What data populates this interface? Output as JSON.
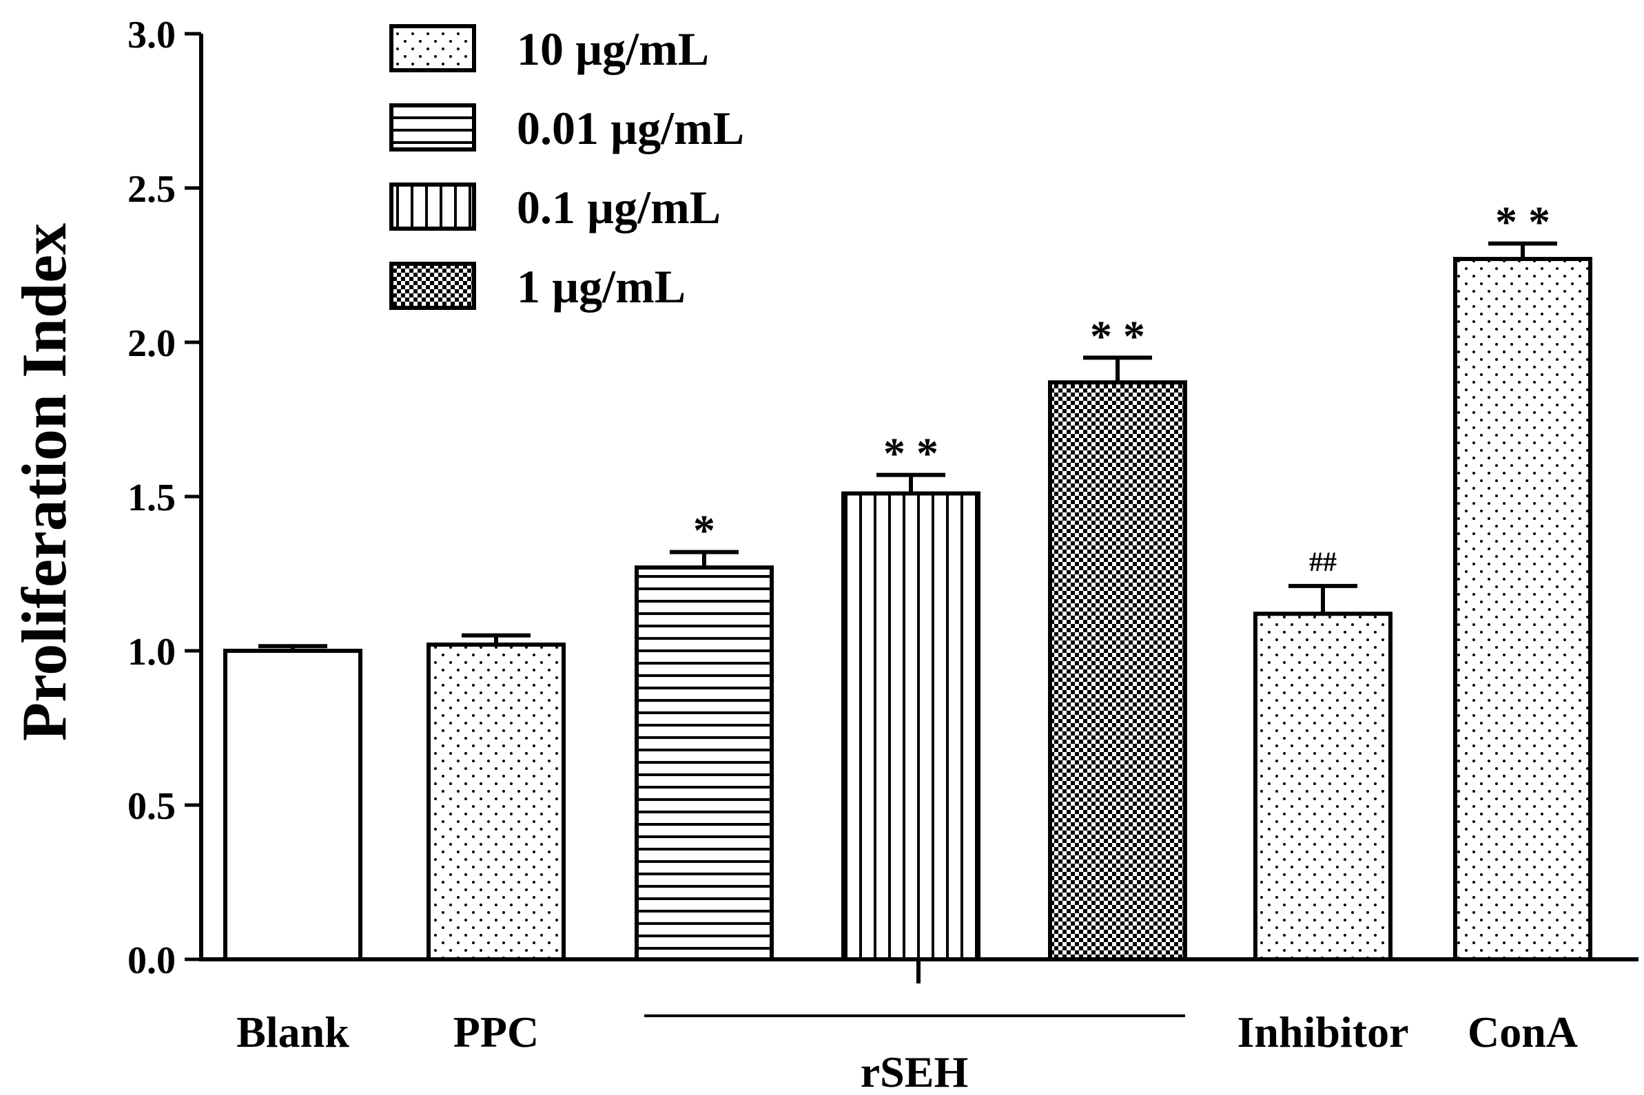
{
  "chart_data": {
    "type": "bar",
    "ylabel": "Proliferation  Index",
    "ylim": [
      0,
      3
    ],
    "yticks": [
      0.0,
      0.5,
      1.0,
      1.5,
      2.0,
      2.5,
      3.0
    ],
    "ytick_labels": [
      "0.0",
      "0.5",
      "1.0",
      "1.5",
      "2.0",
      "2.5",
      "3.0"
    ],
    "bars": [
      {
        "category": "Blank",
        "value": 1.0,
        "error": 0.015,
        "pattern": "none",
        "annotation": ""
      },
      {
        "category": "PPC",
        "value": 1.02,
        "error": 0.03,
        "pattern": "dots-sparse",
        "annotation": ""
      },
      {
        "category": "rSEH 0.01 µg/mL",
        "value": 1.27,
        "error": 0.05,
        "pattern": "hlines",
        "annotation": "*"
      },
      {
        "category": "rSEH 0.1 µg/mL",
        "value": 1.51,
        "error": 0.06,
        "pattern": "vlines",
        "annotation": "* *"
      },
      {
        "category": "rSEH 1 µg/mL",
        "value": 1.87,
        "error": 0.08,
        "pattern": "checker",
        "annotation": "* *"
      },
      {
        "category": "Inhibitor",
        "value": 1.12,
        "error": 0.09,
        "pattern": "dots-sparse",
        "annotation": "##"
      },
      {
        "category": "ConA",
        "value": 2.27,
        "error": 0.05,
        "pattern": "dots-sparse",
        "annotation": "* *"
      }
    ],
    "xlabels": {
      "blank": "Blank",
      "ppc": "PPC",
      "group": "rSEH",
      "inhibitor": "Inhibitor",
      "cona": "ConA"
    },
    "legend": {
      "position": "top-left",
      "entries": [
        {
          "label": "10 µg/mL",
          "pattern": "dots-sparse"
        },
        {
          "label": "0.01 µg/mL",
          "pattern": "hlines"
        },
        {
          "label": "0.1 µg/mL",
          "pattern": "vlines"
        },
        {
          "label": "1 µg/mL",
          "pattern": "checker"
        }
      ]
    }
  }
}
